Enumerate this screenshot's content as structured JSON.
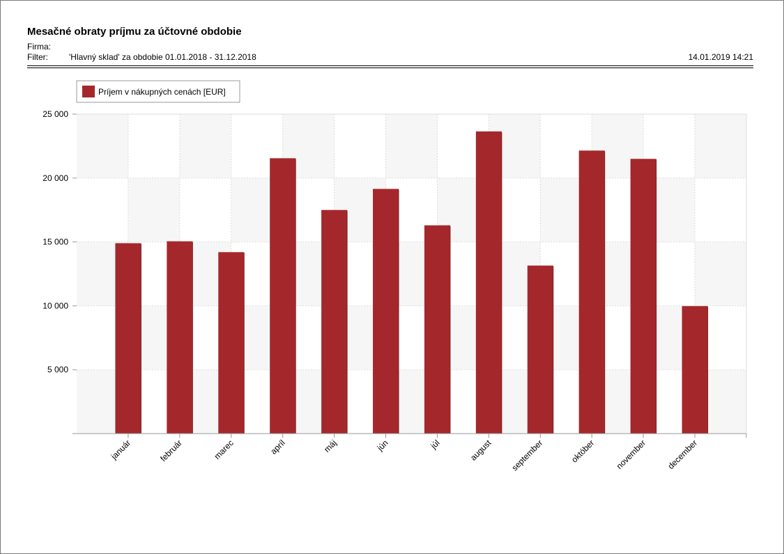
{
  "report": {
    "title": "Mesačné obraty príjmu za účtovné obdobie",
    "firma_label": "Firma:",
    "filter_label": "Filter:",
    "filter_value": "'Hlavný sklad' za obdobie 01.01.2018 - 31.12.2018",
    "printed": "14.01.2019 14:21"
  },
  "chart_data": {
    "type": "bar",
    "title": "",
    "xlabel": "",
    "ylabel": "",
    "ylim": [
      0,
      25000
    ],
    "yticks": [
      5000,
      10000,
      15000,
      20000,
      25000
    ],
    "ytick_labels": [
      "5 000",
      "10 000",
      "15 000",
      "20 000",
      "25 000"
    ],
    "grid": true,
    "legend_position": "top-left",
    "categories": [
      "január",
      "február",
      "marec",
      "apríl",
      "máj",
      "jún",
      "júl",
      "august",
      "september",
      "október",
      "november",
      "december"
    ],
    "series": [
      {
        "name": "Príjem v nákupných cenách [EUR]",
        "color": "#a4282b",
        "values": [
          14900,
          15050,
          14200,
          21550,
          17500,
          19150,
          16300,
          23650,
          13150,
          22150,
          21500,
          9980
        ]
      }
    ]
  }
}
